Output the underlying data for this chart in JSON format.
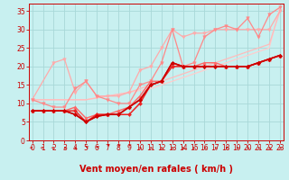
{
  "bg_color": "#c8f0f0",
  "grid_color": "#a8d8d8",
  "xlabel": "Vent moyen/en rafales ( km/h )",
  "ylabel_ticks": [
    0,
    5,
    10,
    15,
    20,
    25,
    30,
    35
  ],
  "xlim": [
    -0.3,
    23.3
  ],
  "ylim": [
    0,
    37
  ],
  "series": [
    {
      "x": [
        0,
        1,
        2,
        3,
        4,
        5,
        6,
        7,
        8,
        9,
        10,
        11,
        12,
        13,
        14,
        15,
        16,
        17,
        18,
        19,
        20,
        21,
        22,
        23
      ],
      "y": [
        11,
        11,
        11,
        11,
        11,
        11,
        11.5,
        12,
        12.5,
        13,
        13.5,
        14,
        15,
        16,
        17,
        18,
        19,
        20,
        21,
        22,
        23,
        24,
        25,
        36
      ],
      "color": "#ffcccc",
      "lw": 0.9,
      "marker": "",
      "ms": 0
    },
    {
      "x": [
        0,
        1,
        2,
        3,
        4,
        5,
        6,
        7,
        8,
        9,
        10,
        11,
        12,
        13,
        14,
        15,
        16,
        17,
        18,
        19,
        20,
        21,
        22,
        23
      ],
      "y": [
        11,
        11,
        11,
        11,
        11,
        11,
        11.5,
        12,
        12.5,
        13,
        14,
        15,
        16,
        17,
        18,
        19,
        20,
        21,
        22,
        23,
        24,
        25,
        26,
        35
      ],
      "color": "#ffbbbb",
      "lw": 0.9,
      "marker": "",
      "ms": 0
    },
    {
      "x": [
        0,
        2,
        3,
        4,
        5,
        6,
        7,
        8,
        9,
        10,
        11,
        12,
        13,
        14,
        15,
        16,
        17,
        18,
        19,
        20,
        21,
        22,
        23
      ],
      "y": [
        11,
        21,
        22,
        13,
        16,
        12,
        12,
        12,
        13,
        19,
        20,
        25,
        30,
        28,
        29,
        29,
        30,
        30,
        30,
        30,
        30,
        30,
        35
      ],
      "color": "#ffaaaa",
      "lw": 0.9,
      "marker": "v",
      "ms": 2.5
    },
    {
      "x": [
        0,
        1,
        2,
        3,
        4,
        5,
        6,
        7,
        8,
        9,
        10,
        11,
        12,
        13,
        14,
        15,
        16,
        17,
        18,
        19,
        20,
        21,
        22,
        23
      ],
      "y": [
        11,
        10,
        9,
        9,
        14,
        16,
        12,
        11,
        10,
        10,
        15,
        16,
        21,
        30,
        20,
        21,
        28,
        30,
        31,
        30,
        33,
        28,
        34,
        36
      ],
      "color": "#ff8888",
      "lw": 0.9,
      "marker": "v",
      "ms": 2.5
    },
    {
      "x": [
        0,
        1,
        2,
        3,
        4,
        5,
        6,
        7,
        8,
        9,
        10,
        11,
        12,
        13,
        14,
        15,
        16,
        17,
        18,
        19,
        20,
        21,
        22,
        23
      ],
      "y": [
        8,
        8,
        8,
        8,
        9,
        6,
        7,
        7,
        8,
        9,
        12,
        16,
        16,
        21,
        20,
        20,
        21,
        21,
        20,
        20,
        20,
        21,
        22,
        23
      ],
      "color": "#ff6666",
      "lw": 1.0,
      "marker": "^",
      "ms": 2.5
    },
    {
      "x": [
        0,
        1,
        2,
        3,
        4,
        5,
        6,
        7,
        8,
        9,
        10,
        11,
        12,
        13,
        14,
        15,
        16,
        17,
        18,
        19,
        20,
        21,
        22,
        23
      ],
      "y": [
        8,
        8,
        8,
        8,
        8,
        5,
        7,
        7,
        7,
        7,
        10,
        15,
        16,
        20,
        20,
        20,
        20,
        20,
        20,
        20,
        20,
        21,
        22,
        23
      ],
      "color": "#ee2222",
      "lw": 1.1,
      "marker": "D",
      "ms": 2.0
    },
    {
      "x": [
        0,
        1,
        2,
        3,
        4,
        5,
        6,
        7,
        8,
        9,
        10,
        11,
        12,
        13,
        14,
        15,
        16,
        17,
        18,
        19,
        20,
        21,
        22,
        23
      ],
      "y": [
        8,
        8,
        8,
        8,
        7,
        5,
        6.5,
        7,
        7,
        9,
        11,
        15,
        16,
        21,
        20,
        20,
        20,
        20,
        20,
        20,
        20,
        21,
        22,
        23
      ],
      "color": "#dd1111",
      "lw": 1.1,
      "marker": "D",
      "ms": 2.0
    },
    {
      "x": [
        0,
        1,
        2,
        3,
        4,
        5,
        6,
        7,
        8,
        9,
        10,
        11,
        12,
        13,
        14,
        15,
        16,
        17,
        18,
        19,
        20,
        21,
        22,
        23
      ],
      "y": [
        8,
        8,
        8,
        8,
        7,
        5,
        6.5,
        7,
        7,
        9,
        11,
        15,
        16,
        21,
        20,
        20,
        20,
        20,
        20,
        20,
        20,
        21,
        22,
        23
      ],
      "color": "#cc0000",
      "lw": 1.1,
      "marker": "D",
      "ms": 2.0
    }
  ],
  "tick_fontsize": 5.5,
  "label_fontsize": 7,
  "arrow_color": "#cc0000"
}
